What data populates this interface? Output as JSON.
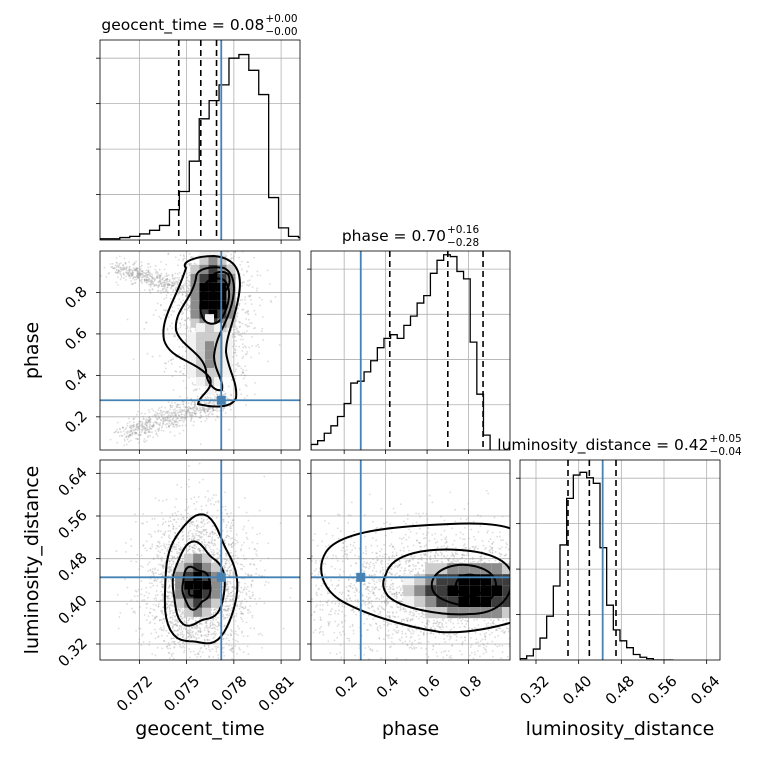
{
  "chart_data": {
    "type": "corner",
    "params": [
      "geocent_time",
      "phase",
      "luminosity_distance"
    ],
    "injection": {
      "geocent_time": 0.0772,
      "phase": 0.28,
      "luminosity_distance": 0.445
    },
    "truth_color": "#4682b4",
    "density_colors": [
      "#f2f2f2",
      "#cccccc",
      "#8c8c8c",
      "#3c3c3c",
      "#000000"
    ],
    "titles": {
      "geocent_time": {
        "name": "geocent_time",
        "median": "0.08",
        "plus": "+0.00",
        "minus": "−0.00"
      },
      "phase": {
        "name": "phase",
        "median": "0.70",
        "plus": "+0.16",
        "minus": "−0.28"
      },
      "luminosity_distance": {
        "name": "luminosity_distance",
        "median": "0.42",
        "plus": "+0.05",
        "minus": "−0.04"
      }
    },
    "axes": {
      "geocent_time": {
        "range": [
          0.0695,
          0.0822
        ],
        "ticks": [
          0.072,
          0.075,
          0.078,
          0.081
        ],
        "tick_labels": [
          "0.072",
          "0.075",
          "0.078",
          "0.081"
        ],
        "label": "geocent_time"
      },
      "phase": {
        "range": [
          0.04,
          1.0
        ],
        "ticks": [
          0.2,
          0.4,
          0.6,
          0.8
        ],
        "tick_labels": [
          "0.2",
          "0.4",
          "0.6",
          "0.8"
        ],
        "label": "phase"
      },
      "luminosity_distance": {
        "range": [
          0.29,
          0.665
        ],
        "ticks": [
          0.32,
          0.4,
          0.48,
          0.56,
          0.64
        ],
        "tick_labels": [
          "0.32",
          "0.40",
          "0.48",
          "0.56",
          "0.64"
        ],
        "label": "luminosity_distance"
      }
    },
    "quantiles": {
      "geocent_time": [
        0.0745,
        0.0759,
        0.0769
      ],
      "phase": [
        0.42,
        0.7,
        0.87
      ],
      "luminosity_distance": [
        0.38,
        0.42,
        0.47
      ]
    },
    "histograms": {
      "geocent_time": {
        "edges_start": 0.0695,
        "bin_width": 0.00063,
        "counts": [
          1,
          1,
          2,
          3,
          5,
          8,
          12,
          25,
          40,
          65,
          100,
          115,
          128,
          150,
          153,
          140,
          120,
          35,
          10,
          3,
          2,
          1
        ],
        "ymax": 165
      },
      "phase": {
        "edges_start": 0.04,
        "bin_width": 0.032,
        "counts": [
          3,
          5,
          9,
          13,
          18,
          25,
          36,
          37,
          42,
          48,
          55,
          60,
          62,
          60,
          67,
          72,
          79,
          83,
          95,
          102,
          105,
          104,
          96,
          92,
          58,
          30,
          8
        ],
        "ymax": 107
      },
      "luminosity_distance": {
        "edges_start": 0.29,
        "bin_width": 0.0125,
        "counts": [
          1,
          3,
          8,
          16,
          32,
          54,
          84,
          118,
          135,
          137,
          133,
          129,
          82,
          40,
          22,
          14,
          9,
          4,
          2,
          1,
          0,
          0,
          0
        ],
        "ymax": 146
      }
    }
  }
}
